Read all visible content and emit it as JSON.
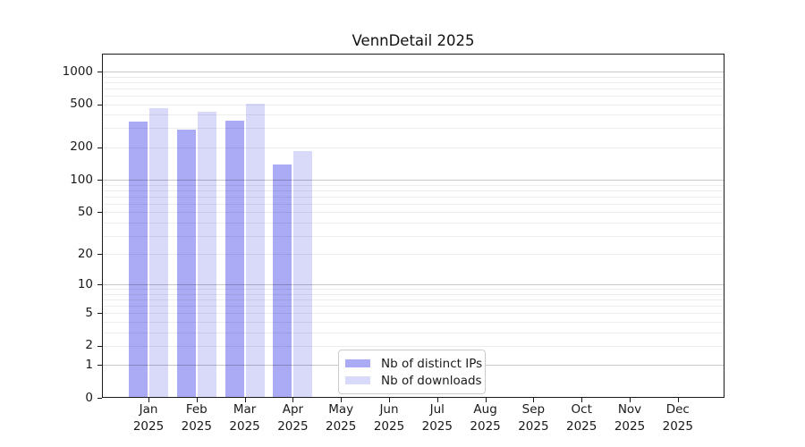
{
  "chart_data": {
    "type": "bar",
    "title": "VennDetail 2025",
    "categories": [
      "Jan",
      "Feb",
      "Mar",
      "Apr",
      "May",
      "Jun",
      "Jul",
      "Aug",
      "Sep",
      "Oct",
      "Nov",
      "Dec"
    ],
    "category_year": "2025",
    "series": [
      {
        "name": "Nb of distinct IPs",
        "color": "#aaaaf5",
        "values": [
          348,
          294,
          351,
          139,
          null,
          null,
          null,
          null,
          null,
          null,
          null,
          null
        ]
      },
      {
        "name": "Nb of downloads",
        "color": "#d9d9fa",
        "values": [
          463,
          425,
          505,
          185,
          null,
          null,
          null,
          null,
          null,
          null,
          null,
          null
        ]
      }
    ],
    "xlabel": "",
    "ylabel": "",
    "y_ticks": [
      0,
      1,
      2,
      5,
      10,
      20,
      50,
      100,
      200,
      500,
      1000
    ],
    "yscale": "log10(1+x)",
    "ylim": [
      0,
      1460
    ],
    "grid": true,
    "legend_position": "bottom-center-inside",
    "colors": {
      "bar_distinct_ips": "#aaaaf5",
      "bar_downloads": "#d9d9fa",
      "grid_major": "rgba(0,0,0,0.22)",
      "grid_minor": "rgba(0,0,0,0.07)",
      "axis": "#1a1a1a",
      "legend_border": "#cccccc",
      "background": "#ffffff"
    }
  }
}
